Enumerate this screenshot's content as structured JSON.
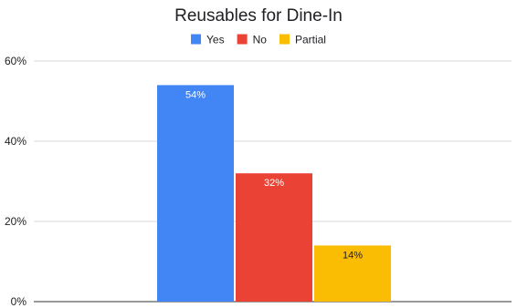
{
  "chart_data": {
    "type": "bar",
    "title": "Reusables for Dine-In",
    "xlabel": "",
    "ylabel": "",
    "ylim": [
      0,
      60
    ],
    "yticks": [
      0,
      20,
      40,
      60
    ],
    "yticks_format": "percent",
    "grid": true,
    "legend": {
      "position": "top"
    },
    "series": [
      {
        "name": "Yes",
        "value": 54,
        "label": "54%",
        "color": "#4285f4",
        "label_color": "#ffffff"
      },
      {
        "name": "No",
        "value": 32,
        "label": "32%",
        "color": "#ea4335",
        "label_color": "#ffffff"
      },
      {
        "name": "Partial",
        "value": 14,
        "label": "14%",
        "color": "#fbbc04",
        "label_color": "#202124"
      }
    ]
  }
}
